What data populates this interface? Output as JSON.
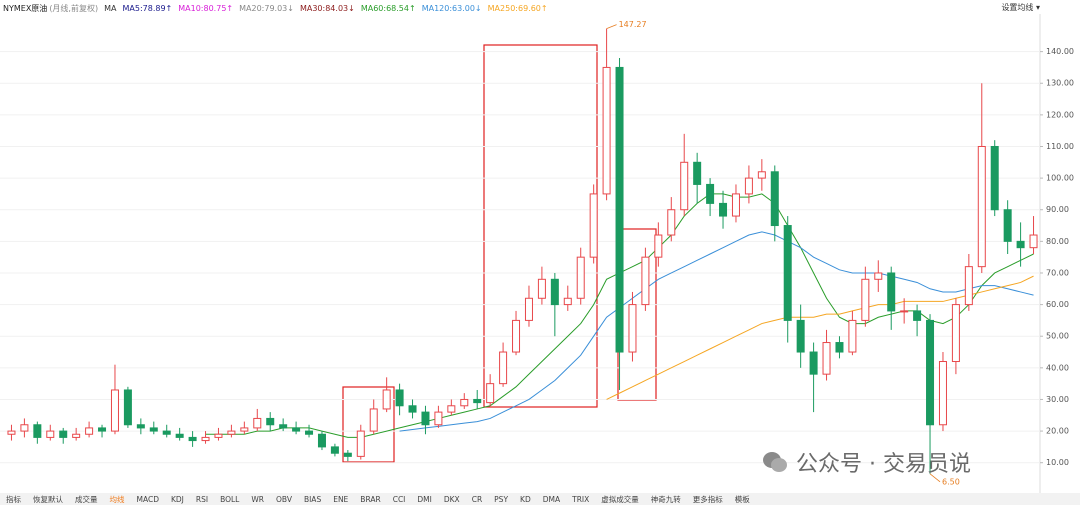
{
  "chart_data": {
    "type": "candlestick",
    "symbol": "NYMEX原油",
    "period": "(月线,前复权)",
    "ma_label": "MA",
    "ma_legend": [
      {
        "text": "MA5:78.89↑",
        "color": "#1a1a8c"
      },
      {
        "text": "MA10:80.75↑",
        "color": "#d81ed8"
      },
      {
        "text": "MA20:79.03↓",
        "color": "#888888"
      },
      {
        "text": "MA30:84.03↓",
        "color": "#8b1a1a"
      },
      {
        "text": "MA60:68.54↑",
        "color": "#2a9d2a"
      },
      {
        "text": "MA120:63.00↓",
        "color": "#3a8fd8"
      },
      {
        "text": "MA250:69.60↑",
        "color": "#f5a623"
      }
    ],
    "settings_button": "设置均线 ▾",
    "up_color": "#e8474a",
    "down_color": "#1a9a60",
    "open": [
      19,
      20,
      22,
      18,
      20,
      18,
      19,
      21,
      20,
      33,
      22,
      21,
      20,
      19,
      18,
      17,
      18,
      19,
      20,
      21,
      24,
      22,
      21,
      20,
      19,
      15,
      13,
      12,
      20,
      27,
      33,
      28,
      26,
      22,
      26,
      28,
      30,
      29,
      35,
      45,
      55,
      62,
      68,
      60,
      62,
      75,
      95,
      135,
      45,
      60,
      75,
      82,
      90,
      105,
      98,
      92,
      88,
      95,
      100,
      102,
      85,
      55,
      45,
      38,
      48,
      45,
      55,
      68,
      70,
      58,
      58,
      55,
      22,
      42,
      60,
      72,
      110,
      90,
      80,
      78
    ],
    "high": [
      22,
      24,
      23,
      22,
      21,
      21,
      23,
      22,
      41,
      34,
      24,
      23,
      22,
      21,
      20,
      20,
      21,
      22,
      23,
      27,
      26,
      24,
      23,
      22,
      20,
      16,
      14,
      22,
      30,
      37,
      35,
      30,
      28,
      28,
      30,
      32,
      33,
      38,
      48,
      58,
      66,
      72,
      70,
      66,
      78,
      98,
      147.27,
      138,
      64,
      78,
      86,
      94,
      114,
      108,
      100,
      96,
      98,
      104,
      106,
      104,
      88,
      60,
      48,
      52,
      50,
      58,
      72,
      74,
      72,
      62,
      60,
      57,
      45,
      62,
      76,
      130,
      112,
      93,
      86,
      88
    ],
    "low": [
      17,
      18,
      16,
      17,
      16,
      17,
      18,
      18,
      19,
      21,
      19,
      19,
      18,
      17,
      15,
      16,
      17,
      18,
      19,
      20,
      20,
      20,
      19,
      18,
      14,
      12,
      10.5,
      11,
      19,
      26,
      25,
      24,
      19,
      21,
      25,
      27,
      27,
      28,
      34,
      44,
      53,
      60,
      50,
      58,
      60,
      73,
      93,
      33,
      42,
      58,
      72,
      80,
      88,
      92,
      88,
      84,
      86,
      92,
      96,
      80,
      48,
      40,
      26,
      36,
      43,
      44,
      53,
      64,
      52,
      54,
      50,
      6.5,
      20,
      38,
      58,
      70,
      88,
      76,
      72,
      76
    ],
    "close": [
      20,
      22,
      18,
      20,
      18,
      19,
      21,
      20,
      33,
      22,
      21,
      20,
      19,
      18,
      17,
      18,
      19,
      20,
      21,
      24,
      22,
      21,
      20,
      19,
      15,
      13,
      12,
      20,
      27,
      33,
      28,
      26,
      22,
      26,
      28,
      30,
      29,
      35,
      45,
      55,
      62,
      68,
      60,
      62,
      75,
      95,
      135,
      45,
      60,
      75,
      82,
      90,
      105,
      98,
      92,
      88,
      95,
      100,
      102,
      85,
      55,
      45,
      38,
      48,
      45,
      55,
      68,
      70,
      58,
      58,
      55,
      22,
      42,
      60,
      72,
      110,
      90,
      80,
      78,
      82
    ],
    "series": [
      {
        "name": "MA60",
        "color": "#2a9d2a",
        "values": [
          null,
          null,
          null,
          null,
          null,
          null,
          null,
          null,
          null,
          null,
          null,
          null,
          null,
          null,
          null,
          19,
          19,
          19,
          19,
          20,
          20,
          21,
          21,
          21,
          20,
          19,
          18,
          18,
          19,
          20,
          21,
          22,
          23,
          24,
          25,
          26,
          27,
          28,
          31,
          34,
          38,
          42,
          46,
          50,
          54,
          60,
          68,
          70,
          72,
          74,
          78,
          82,
          88,
          92,
          95,
          95,
          94,
          94,
          95,
          92,
          85,
          78,
          70,
          62,
          56,
          54,
          54,
          56,
          57,
          58,
          58,
          55,
          54,
          56,
          60,
          66,
          70,
          72,
          74,
          76
        ]
      },
      {
        "name": "MA120",
        "color": "#3a8fd8",
        "values": [
          null,
          null,
          null,
          null,
          null,
          null,
          null,
          null,
          null,
          null,
          null,
          null,
          null,
          null,
          null,
          null,
          null,
          null,
          null,
          null,
          null,
          null,
          null,
          null,
          null,
          null,
          null,
          null,
          null,
          null,
          20,
          20.5,
          21,
          21.5,
          22,
          22.5,
          23,
          24,
          26,
          28,
          30,
          33,
          36,
          40,
          44,
          50,
          56,
          59,
          62,
          65,
          68,
          70,
          72,
          74,
          76,
          78,
          80,
          82,
          83,
          82,
          80,
          78,
          75,
          73,
          71,
          70,
          70,
          70,
          69,
          68,
          67,
          65,
          64,
          64,
          65,
          66,
          66,
          65,
          64,
          63
        ]
      },
      {
        "name": "MA250",
        "color": "#f5a623",
        "values": [
          null,
          null,
          null,
          null,
          null,
          null,
          null,
          null,
          null,
          null,
          null,
          null,
          null,
          null,
          null,
          null,
          null,
          null,
          null,
          null,
          null,
          null,
          null,
          null,
          null,
          null,
          null,
          null,
          null,
          null,
          null,
          null,
          null,
          null,
          null,
          null,
          null,
          null,
          null,
          null,
          null,
          null,
          null,
          null,
          null,
          null,
          30,
          32,
          34,
          36,
          38,
          40,
          42,
          44,
          46,
          48,
          50,
          52,
          54,
          55,
          56,
          56,
          56,
          57,
          57,
          58,
          59,
          60,
          60,
          61,
          61,
          61,
          61,
          62,
          63,
          64,
          65,
          66,
          67,
          69
        ]
      }
    ],
    "ylim": [
      2,
      150
    ],
    "yticks": [
      {
        "value": 10,
        "label": "10.00"
      },
      {
        "value": 20,
        "label": "20.00"
      },
      {
        "value": 30,
        "label": "30.00"
      },
      {
        "value": 40,
        "label": "40.00"
      },
      {
        "value": 50,
        "label": "50.00"
      },
      {
        "value": 60,
        "label": "60.00"
      },
      {
        "value": 70,
        "label": "70.00"
      },
      {
        "value": 80,
        "label": "80.00"
      },
      {
        "value": 90,
        "label": "90.00"
      },
      {
        "value": 100,
        "label": "100.00"
      },
      {
        "value": 110,
        "label": "110.00"
      },
      {
        "value": 120,
        "label": "120.00"
      },
      {
        "value": 130,
        "label": "130.00"
      },
      {
        "value": 140,
        "label": "140.00"
      }
    ],
    "grid": true,
    "max_marker": {
      "index": 46,
      "value": 147.27,
      "label": "147.27"
    },
    "min_marker": {
      "index": 71,
      "value": 6.5,
      "label": "6.50"
    },
    "watermark": "公众号 · 交易员说",
    "toolbar": {
      "tabs": [
        "指标",
        "恢复默认",
        "成交量",
        "均线",
        "MACD",
        "KDJ",
        "RSI",
        "BOLL",
        "WR",
        "OBV",
        "BIAS",
        "ENE",
        "BRAR",
        "CCI",
        "DMI",
        "DKX",
        "CR",
        "PSY",
        "KD",
        "DMA",
        "TRIX",
        "虚拟成交量",
        "神奇九转",
        "更多指标",
        "模板"
      ],
      "active": 3
    }
  }
}
